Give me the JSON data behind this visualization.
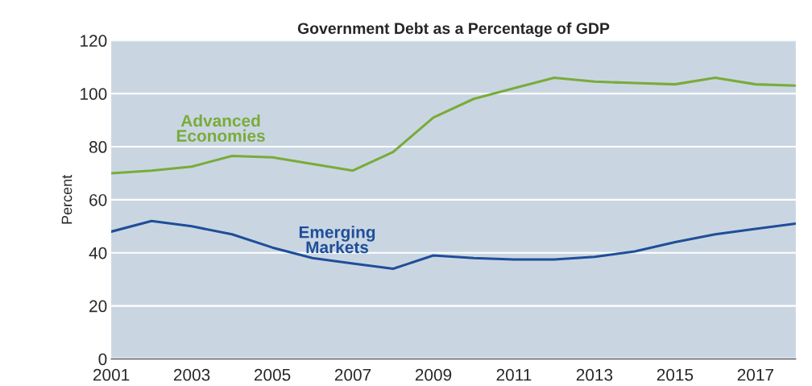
{
  "chart_data": {
    "type": "line",
    "title": "Government Debt as a Percentage of GDP",
    "ylabel": "Percent",
    "x": [
      2001,
      2002,
      2003,
      2004,
      2005,
      2006,
      2007,
      2008,
      2009,
      2010,
      2011,
      2012,
      2013,
      2014,
      2015,
      2016,
      2017,
      2018
    ],
    "series": [
      {
        "name": "Advanced\nEconomies",
        "color": "#7aab3a",
        "values": [
          70,
          71,
          72.5,
          76.5,
          76,
          73.5,
          71,
          78,
          91,
          98,
          102,
          106,
          104.5,
          104,
          103.5,
          106,
          103.5,
          103
        ]
      },
      {
        "name": "Emerging\nMarkets",
        "color": "#1f4e99",
        "values": [
          48,
          52,
          50,
          47,
          42,
          38,
          36,
          34,
          39,
          38,
          37.5,
          37.5,
          38.5,
          40.5,
          44,
          47,
          49,
          51
        ]
      }
    ],
    "xlim": [
      2001,
      2018
    ],
    "xticks": [
      2001,
      2003,
      2005,
      2007,
      2009,
      2011,
      2013,
      2015,
      2017
    ],
    "ylim": [
      0,
      120
    ],
    "yticks": [
      0,
      20,
      40,
      60,
      80,
      100,
      120
    ],
    "grid": "y",
    "legend": false,
    "marker": "none",
    "line_style": "solid"
  }
}
